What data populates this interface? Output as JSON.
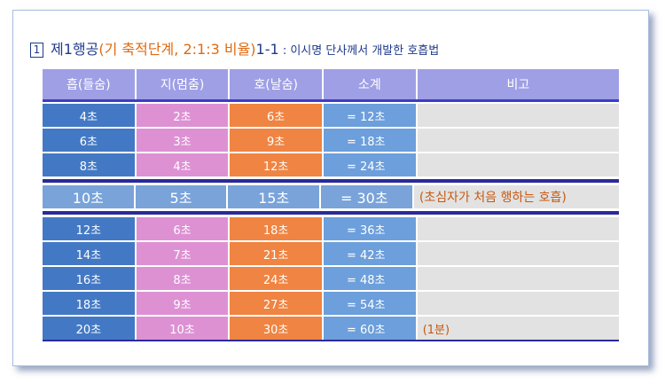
{
  "title": {
    "number": "1",
    "main": "제1행공",
    "paren": "(기 축적단계, 2:1:3 비율)",
    "code": "1-1",
    "subtitle": " : 이시명 단사께서 개발한 호흡법"
  },
  "table": {
    "headers": [
      "흡(들숨)",
      "지(멈춤)",
      "호(날숨)",
      "소계",
      "비고"
    ],
    "group1": [
      {
        "inhale": "4초",
        "hold": "2초",
        "exhale": "6초",
        "total": "= 12초",
        "note": ""
      },
      {
        "inhale": "6초",
        "hold": "3초",
        "exhale": "9초",
        "total": "= 18초",
        "note": ""
      },
      {
        "inhale": "8초",
        "hold": "4초",
        "exhale": "12초",
        "total": "= 24초",
        "note": ""
      }
    ],
    "special": {
      "inhale": "10초",
      "hold": "5초",
      "exhale": "15초",
      "total": "= 30초",
      "note": "(초심자가 처음 행하는 호흡)"
    },
    "group2": [
      {
        "inhale": "12초",
        "hold": "6초",
        "exhale": "18초",
        "total": "= 36초",
        "note": ""
      },
      {
        "inhale": "14초",
        "hold": "7초",
        "exhale": "21초",
        "total": "= 42초",
        "note": ""
      },
      {
        "inhale": "16초",
        "hold": "8초",
        "exhale": "24초",
        "total": "= 48초",
        "note": ""
      },
      {
        "inhale": "18초",
        "hold": "9초",
        "exhale": "27초",
        "total": "= 54초",
        "note": ""
      },
      {
        "inhale": "20초",
        "hold": "10초",
        "exhale": "30초",
        "total": "= 60초",
        "note": "(1분)"
      }
    ]
  },
  "colors": {
    "inhale": "#4379c4",
    "hold": "#dd91d3",
    "exhale": "#f08442",
    "total": "#6c9fdb",
    "note": "#e2e2e2",
    "header": "#9f9fe6",
    "title": "#1f3a8a",
    "accent": "#e06a10"
  }
}
